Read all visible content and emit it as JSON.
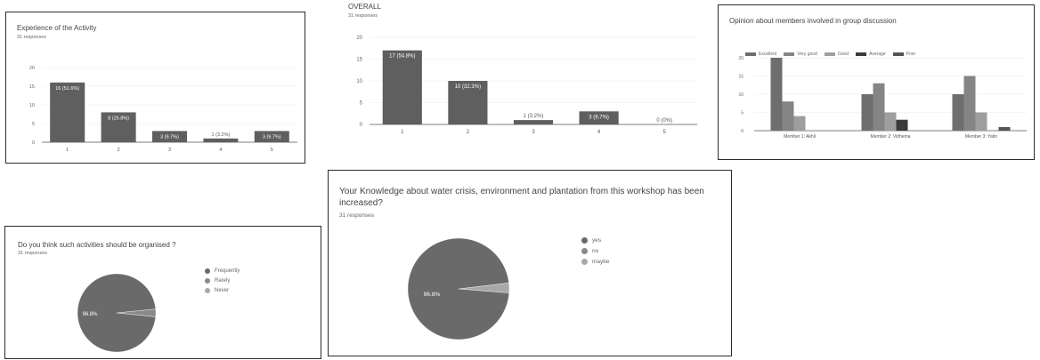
{
  "panels": {
    "experience": {
      "title": "Experience of the Activity",
      "subtitle": "31 responses"
    },
    "overall": {
      "title": "OVERALL",
      "subtitle": "31 responses"
    },
    "opinion": {
      "title": "Opinion about members involved in group discussion"
    },
    "organised": {
      "title": "Do you think such activities should be organised ?",
      "subtitle": "31 responses"
    },
    "knowledge": {
      "title": "Your Knowledge about water crisis, environment and plantation from this workshop has been increased?",
      "subtitle": "31 responses"
    }
  },
  "chart_data": [
    {
      "id": "experience",
      "type": "bar",
      "title": "Experience of the Activity",
      "categories": [
        "1",
        "2",
        "3",
        "4",
        "5"
      ],
      "values": [
        16,
        8,
        3,
        1,
        3
      ],
      "data_labels": [
        "16 (51.6%)",
        "8 (25.8%)",
        "3 (9.7%)",
        "1 (3.2%)",
        "3 (9.7%)"
      ],
      "yticks": [
        "0",
        "5",
        "10",
        "15",
        "20"
      ],
      "ylim": [
        0,
        20
      ],
      "grid": true,
      "colors": [
        "#5f5f5f"
      ]
    },
    {
      "id": "overall",
      "type": "bar",
      "title": "OVERALL",
      "categories": [
        "1",
        "2",
        "3",
        "4",
        "5"
      ],
      "values": [
        17,
        10,
        1,
        3,
        0
      ],
      "data_labels": [
        "17 (54.8%)",
        "10 (32.3%)",
        "1 (3.2%)",
        "3 (9.7%)",
        "0 (0%)"
      ],
      "yticks": [
        "0",
        "5",
        "10",
        "15",
        "20"
      ],
      "ylim": [
        0,
        20
      ],
      "grid": true,
      "colors": [
        "#5f5f5f"
      ]
    },
    {
      "id": "opinion",
      "type": "bar",
      "title": "Opinion about members involved in group discussion",
      "categories": [
        "Member 1: Akhil",
        "Member 2: Vidhema",
        "Member 3: Yatin"
      ],
      "series": [
        {
          "name": "Excellent",
          "values": [
            20,
            10,
            10
          ]
        },
        {
          "name": "Very good",
          "values": [
            8,
            13,
            15
          ]
        },
        {
          "name": "Good",
          "values": [
            4,
            5,
            5
          ]
        },
        {
          "name": "Average",
          "values": [
            0,
            3,
            0
          ]
        },
        {
          "name": "Poor",
          "values": [
            0,
            0,
            1
          ]
        }
      ],
      "series_colors": [
        "#6e6e6e",
        "#858585",
        "#9e9e9e",
        "#3a3a3a",
        "#555555"
      ],
      "yticks": [
        "0",
        "5",
        "10",
        "15",
        "20"
      ],
      "ylim": [
        0,
        20
      ],
      "legend": "top",
      "grid": true
    },
    {
      "id": "organised",
      "type": "pie",
      "title": "Do you think such activities should be organised ?",
      "labels": [
        "Frequently",
        "Rarely",
        "Never"
      ],
      "values": [
        96.8,
        3.2,
        0
      ],
      "slice_label": "96.8%",
      "colors": [
        "#6a6a6a",
        "#8a8a8a",
        "#a8a8a8"
      ],
      "legend": "right"
    },
    {
      "id": "knowledge",
      "type": "pie",
      "title": "Your Knowledge about water crisis, environment and plantation from this workshop has been increased?",
      "labels": [
        "yes",
        "no",
        "maybe"
      ],
      "values": [
        96.8,
        0,
        3.2
      ],
      "slice_label": "96.8%",
      "colors": [
        "#6a6a6a",
        "#8a8a8a",
        "#a8a8a8"
      ],
      "legend": "right"
    }
  ]
}
